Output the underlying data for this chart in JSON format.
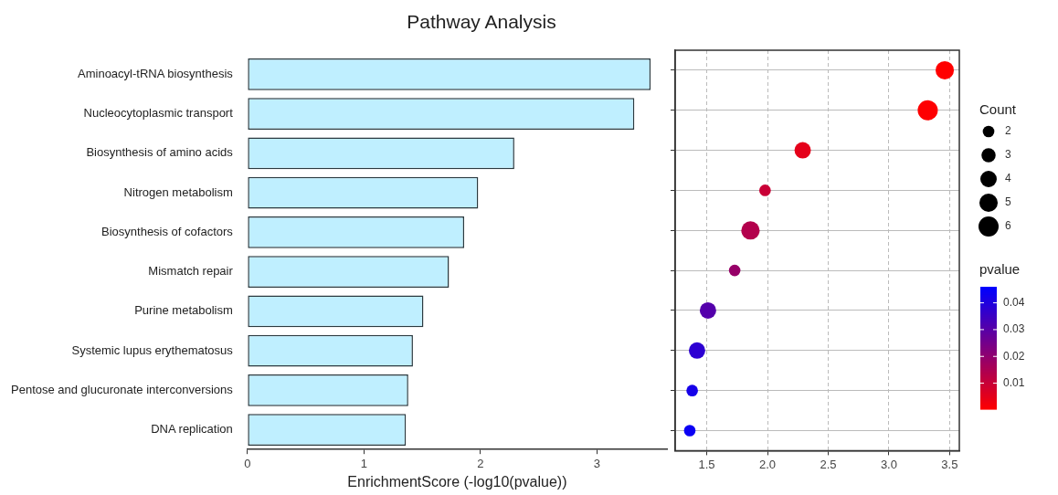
{
  "chart_data": [
    {
      "type": "bar",
      "title": "Pathway Analysis",
      "orientation": "horizontal",
      "xlabel": "EnrichmentScore (-log10(pvalue))",
      "categories": [
        "Aminoacyl-tRNA biosynthesis",
        "Nucleocytoplasmic transport",
        "Biosynthesis of amino acids",
        "Nitrogen metabolism",
        "Biosynthesis of cofactors",
        "Mismatch repair",
        "Purine metabolism",
        "Systemic lupus erythematosus",
        "Pentose and glucuronate interconversions",
        "DNA replication"
      ],
      "values": [
        3.46,
        3.32,
        2.29,
        1.98,
        1.86,
        1.73,
        1.51,
        1.42,
        1.38,
        1.36
      ],
      "color": "#bfefff",
      "xlim": [
        0,
        3.6
      ],
      "xticks": [
        0,
        1,
        2,
        3
      ]
    },
    {
      "type": "bubble",
      "orientation": "horizontal",
      "categories": [
        null,
        null,
        null,
        null,
        null,
        null,
        null,
        null,
        null,
        null
      ],
      "values": [
        3.46,
        3.32,
        2.29,
        1.98,
        1.86,
        1.73,
        1.51,
        1.42,
        1.38,
        1.36
      ],
      "sizes": [
        5,
        6,
        4,
        2,
        5,
        2,
        4,
        4,
        2,
        2
      ],
      "cvalues": [
        0.0003,
        0.0005,
        0.005,
        0.01,
        0.014,
        0.019,
        0.031,
        0.038,
        0.042,
        0.044
      ],
      "size_legend": [
        2,
        3,
        4,
        5,
        6
      ],
      "legend_title": "Count",
      "clabel": "pvalue",
      "clim": [
        0.0003,
        0.046
      ],
      "cticks": [
        0.01,
        0.02,
        0.03,
        0.04
      ],
      "xlim": [
        1.24,
        3.58
      ],
      "xticks": [
        {
          "value": 1.5,
          "label": "1.5"
        },
        {
          "value": 2,
          "label": "2.0"
        },
        {
          "value": 2.5,
          "label": "2.5"
        },
        {
          "value": 3,
          "label": "3.0"
        },
        {
          "value": 3.5,
          "label": "3.5"
        }
      ],
      "grid": true,
      "tick_labels": "x"
    }
  ]
}
